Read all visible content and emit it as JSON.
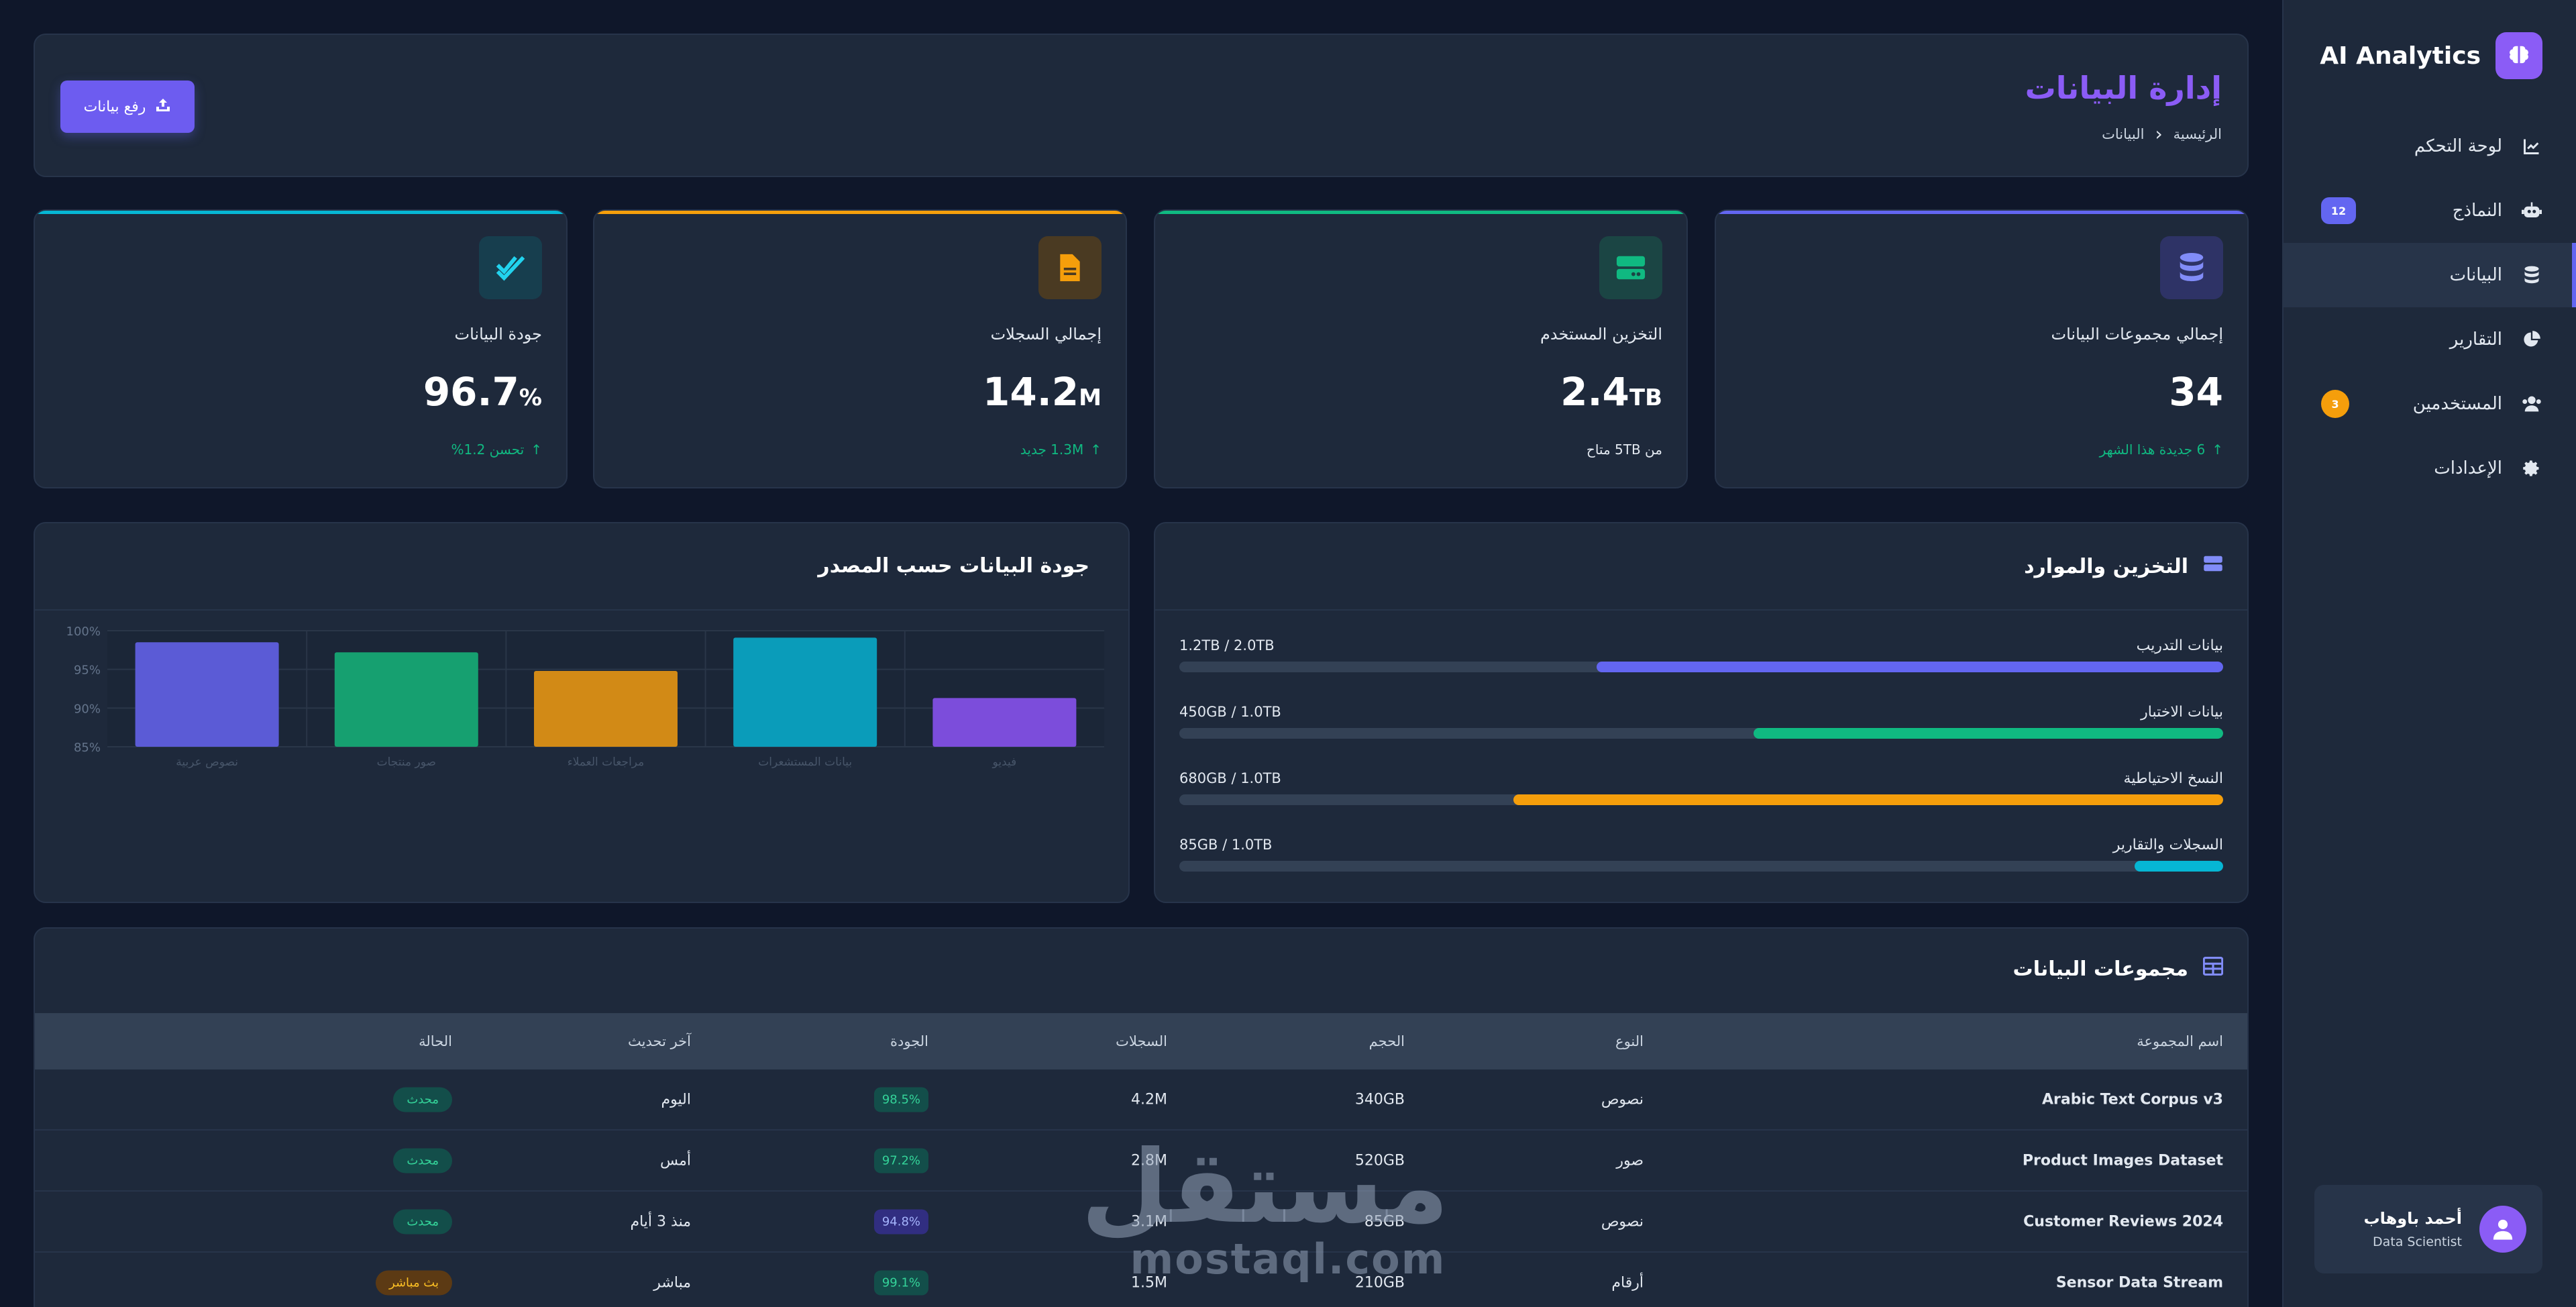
{
  "sidebar": {
    "brand": "AI Analytics",
    "items": [
      {
        "label": "لوحة التحكم",
        "icon": "chart-line-icon"
      },
      {
        "label": "النماذج",
        "icon": "robot-icon",
        "badge": "12"
      },
      {
        "label": "البيانات",
        "icon": "database-icon",
        "active": true
      },
      {
        "label": "التقارير",
        "icon": "pie-chart-icon"
      },
      {
        "label": "المستخدمين",
        "icon": "users-icon",
        "badge": "3"
      },
      {
        "label": "الإعدادات",
        "icon": "gear-icon"
      }
    ],
    "user": {
      "name": "أحمد باوهاب",
      "role": "Data Scientist"
    }
  },
  "header": {
    "title": "إدارة البيانات",
    "breadcrumb": [
      "الرئيسية",
      "البيانات"
    ],
    "upload_label": "رفع بيانات"
  },
  "stats": [
    {
      "label": "إجمالي مجموعات البيانات",
      "value": "34",
      "unit": "",
      "foot": "6 جديدة هذا الشهر",
      "color": "#6366f1"
    },
    {
      "label": "التخزين المستخدم",
      "value": "2.4",
      "unit": "TB",
      "foot": "من 5TB متاح",
      "color": "#10b981"
    },
    {
      "label": "إجمالي السجلات",
      "value": "14.2",
      "unit": "M",
      "foot": "1.3M جديد",
      "color": "#f59e0b"
    },
    {
      "label": "جودة البيانات",
      "value": "96.7",
      "unit": "%",
      "foot": "تحسن 1.2%",
      "color": "#06b6d4"
    }
  ],
  "storage": {
    "title": "التخزين والموارد",
    "rows": [
      {
        "label": "بيانات التدريب",
        "value": "1.2TB / 2.0TB",
        "fraction": 0.6,
        "color": "#6366f1"
      },
      {
        "label": "بيانات الاختبار",
        "value": "450GB / 1.0TB",
        "fraction": 0.45,
        "color": "#10b981"
      },
      {
        "label": "النسخ الاحتياطية",
        "value": "680GB / 1.0TB",
        "fraction": 0.68,
        "color": "#f59e0b"
      },
      {
        "label": "السجلات والتقارير",
        "value": "85GB / 1.0TB",
        "fraction": 0.085,
        "color": "#06b6d4"
      }
    ]
  },
  "quality_chart": {
    "title": "جودة البيانات حسب المصدر"
  },
  "chart_data": {
    "type": "bar",
    "categories": [
      "نصوص عربية",
      "صور منتجات",
      "مراجعات العملاء",
      "بيانات المستشعرات",
      "فيديو"
    ],
    "values": [
      98.5,
      97.2,
      94.8,
      99.1,
      91.3
    ],
    "colors": [
      "#5b5bd6",
      "#16a070",
      "#d28a16",
      "#0a9cba",
      "#7c4ddb"
    ],
    "yticks": [
      "100%",
      "95%",
      "90%",
      "85%"
    ],
    "ylim": [
      85,
      100
    ],
    "grid": true
  },
  "datasets": {
    "title": "مجموعات البيانات",
    "columns": [
      "اسم المجموعة",
      "النوع",
      "الحجم",
      "السجلات",
      "الجودة",
      "آخر تحديث",
      "الحالة"
    ],
    "rows": [
      {
        "name": "Arabic Text Corpus v3",
        "type": "نصوص",
        "size": "340GB",
        "records": "4.2M",
        "quality": "98.5%",
        "qclass": "green",
        "updated": "اليوم",
        "status": "محدث",
        "sclass": "green"
      },
      {
        "name": "Product Images Dataset",
        "type": "صور",
        "size": "520GB",
        "records": "2.8M",
        "quality": "97.2%",
        "qclass": "green",
        "updated": "أمس",
        "status": "محدث",
        "sclass": "green"
      },
      {
        "name": "Customer Reviews 2024",
        "type": "نصوص",
        "size": "85GB",
        "records": "3.1M",
        "quality": "94.8%",
        "qclass": "blue",
        "updated": "منذ 3 أيام",
        "status": "محدث",
        "sclass": "green"
      },
      {
        "name": "Sensor Data Stream",
        "type": "أرقام",
        "size": "210GB",
        "records": "1.5M",
        "quality": "99.1%",
        "qclass": "green",
        "updated": "مباشر",
        "status": "بث مباشر",
        "sclass": "orange"
      }
    ]
  },
  "watermark": {
    "arabic": "مستقل",
    "latin": "mostaql.com"
  }
}
